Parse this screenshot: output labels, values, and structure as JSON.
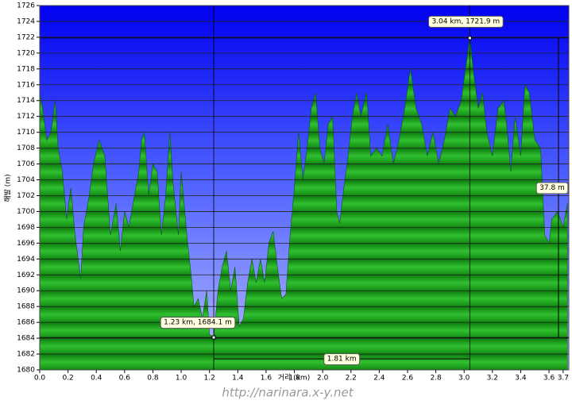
{
  "chart_data": {
    "type": "area",
    "x_label": "거리 (km)",
    "y_label": "해발 (m)",
    "watermark": "http://narinara.x-y.net",
    "xlim": [
      0,
      3.74
    ],
    "ylim": [
      1680,
      1726
    ],
    "xticks": [
      {
        "value": 0,
        "label": "0.0"
      },
      0.2,
      0.4,
      0.6,
      0.8,
      {
        "value": 1,
        "label": "1.0"
      },
      1.2,
      1.4,
      1.6,
      1.8,
      {
        "value": 2,
        "label": "2.0"
      },
      2.2,
      2.4,
      2.6,
      2.8,
      {
        "value": 3,
        "label": "3.0"
      },
      3.2,
      3.4,
      3.6,
      3.7
    ],
    "yticks": [
      1680,
      1682,
      1684,
      1686,
      1688,
      1690,
      1692,
      1694,
      1696,
      1698,
      1700,
      1702,
      1704,
      1706,
      1708,
      1710,
      1712,
      1714,
      1716,
      1718,
      1720,
      1722,
      1724,
      1726
    ],
    "grid": true,
    "color": "#22b022",
    "x": [
      0,
      0.02,
      0.05,
      0.08,
      0.11,
      0.13,
      0.16,
      0.19,
      0.22,
      0.25,
      0.29,
      0.31,
      0.35,
      0.38,
      0.42,
      0.46,
      0.5,
      0.54,
      0.57,
      0.6,
      0.63,
      0.68,
      0.7,
      0.72,
      0.74,
      0.77,
      0.8,
      0.83,
      0.86,
      0.89,
      0.92,
      0.94,
      0.98,
      1.0,
      1.04,
      1.07,
      1.09,
      1.12,
      1.15,
      1.18,
      1.2,
      1.23,
      1.26,
      1.29,
      1.32,
      1.35,
      1.38,
      1.41,
      1.44,
      1.47,
      1.5,
      1.53,
      1.56,
      1.59,
      1.62,
      1.65,
      1.68,
      1.71,
      1.74,
      1.77,
      1.8,
      1.83,
      1.86,
      1.89,
      1.92,
      1.95,
      1.98,
      2.01,
      2.04,
      2.07,
      2.1,
      2.12,
      2.15,
      2.18,
      2.21,
      2.24,
      2.27,
      2.31,
      2.34,
      2.38,
      2.42,
      2.46,
      2.5,
      2.54,
      2.58,
      2.62,
      2.66,
      2.7,
      2.74,
      2.78,
      2.82,
      2.86,
      2.9,
      2.94,
      2.98,
      3.01,
      3.04,
      3.07,
      3.1,
      3.13,
      3.16,
      3.2,
      3.24,
      3.28,
      3.3,
      3.33,
      3.36,
      3.4,
      3.43,
      3.46,
      3.5,
      3.54,
      3.57,
      3.6,
      3.62,
      3.66,
      3.7,
      3.73
    ],
    "values": [
      1715,
      1713,
      1709,
      1710,
      1714,
      1708,
      1705,
      1699,
      1703,
      1697,
      1691.5,
      1698,
      1702,
      1706,
      1709,
      1707,
      1697,
      1701,
      1695,
      1700,
      1698,
      1703,
      1705,
      1709,
      1710,
      1702,
      1706,
      1705,
      1697,
      1702,
      1710,
      1704,
      1697,
      1705,
      1697,
      1692,
      1688,
      1689,
      1686.5,
      1690,
      1684.5,
      1684.1,
      1690,
      1693,
      1695,
      1690,
      1693,
      1685.5,
      1686.5,
      1691,
      1694,
      1691,
      1694,
      1691,
      1696,
      1697.5,
      1693,
      1689,
      1689.5,
      1697,
      1703,
      1710,
      1704,
      1708,
      1713,
      1715,
      1708,
      1706,
      1711,
      1712,
      1700,
      1698.5,
      1703,
      1707,
      1712,
      1715,
      1712,
      1715,
      1707,
      1708,
      1707,
      1711,
      1706,
      1709,
      1713,
      1718,
      1713,
      1711,
      1707,
      1710,
      1706,
      1709,
      1713,
      1712,
      1714,
      1718,
      1721.9,
      1717,
      1713,
      1715,
      1710,
      1707,
      1713,
      1714,
      1711,
      1705,
      1712,
      1707,
      1716,
      1715,
      1709,
      1708,
      1697,
      1696,
      1699,
      1700,
      1698,
      1701
    ],
    "markers": [
      {
        "x": 1.23,
        "y": 1684.1,
        "label": "1.23 km, 1684.1 m"
      },
      {
        "x": 3.04,
        "y": 1721.9,
        "label": "3.04 km, 1721.9 m"
      }
    ],
    "distance_label": "1.81 km",
    "elevation_diff_label": "37.8 m"
  }
}
